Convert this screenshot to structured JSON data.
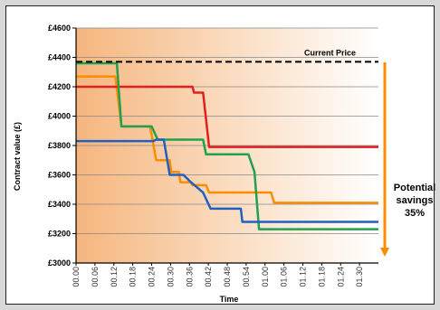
{
  "chart_data": {
    "type": "line",
    "title": "",
    "xlabel": "Time",
    "ylabel": "Contract value (£)",
    "ylim": [
      3000,
      4600
    ],
    "y_ticks": [
      "£3000",
      "£3200",
      "£3400",
      "£3600",
      "£3800",
      "£4000",
      "£4200",
      "£4400",
      "£4600"
    ],
    "x_tick_labels": [
      "00.00",
      "00.06",
      "00.12",
      "00.18",
      "00.24",
      "00.30",
      "00.36",
      "00.42",
      "00.48",
      "00.54",
      "01.00",
      "01.06",
      "01.12",
      "01.18",
      "01.24",
      "01.30"
    ],
    "grid": true,
    "reference_line": {
      "label": "Current Price",
      "value": 4370
    },
    "annotation": {
      "lines": [
        "Potential",
        "savings",
        "35%"
      ]
    },
    "series": [
      {
        "color": "#ff8c00",
        "points": [
          [
            0,
            4270
          ],
          [
            13,
            4270
          ],
          [
            15,
            3930
          ],
          [
            24.5,
            3930
          ],
          [
            26.5,
            3700
          ],
          [
            31,
            3700
          ],
          [
            31.5,
            3620
          ],
          [
            34,
            3620
          ],
          [
            34.5,
            3550
          ],
          [
            38,
            3550
          ],
          [
            38.5,
            3530
          ],
          [
            43,
            3530
          ],
          [
            44,
            3480
          ],
          [
            64.5,
            3480
          ],
          [
            65.5,
            3410
          ],
          [
            100,
            3410
          ]
        ]
      },
      {
        "color": "#e02020",
        "points": [
          [
            0,
            4200
          ],
          [
            38.5,
            4200
          ],
          [
            39,
            4160
          ],
          [
            42,
            4160
          ],
          [
            44,
            3790
          ],
          [
            100,
            3790
          ]
        ]
      },
      {
        "color": "#20a050",
        "points": [
          [
            0,
            4360
          ],
          [
            13.5,
            4360
          ],
          [
            15,
            3930
          ],
          [
            25,
            3930
          ],
          [
            27,
            3840
          ],
          [
            42,
            3840
          ],
          [
            43,
            3740
          ],
          [
            57,
            3740
          ],
          [
            59,
            3620
          ],
          [
            60.5,
            3230
          ],
          [
            100,
            3230
          ]
        ]
      },
      {
        "color": "#2060c0",
        "points": [
          [
            0,
            3830
          ],
          [
            25.5,
            3830
          ],
          [
            26.5,
            3840
          ],
          [
            29,
            3840
          ],
          [
            31,
            3600
          ],
          [
            35.5,
            3600
          ],
          [
            38,
            3550
          ],
          [
            42,
            3480
          ],
          [
            44.5,
            3370
          ],
          [
            54.5,
            3370
          ],
          [
            55,
            3280
          ],
          [
            100,
            3280
          ]
        ]
      }
    ]
  }
}
